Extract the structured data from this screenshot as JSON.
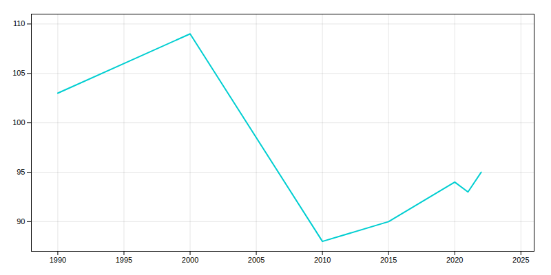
{
  "chart_data": {
    "type": "line",
    "x": [
      1990,
      1995,
      2000,
      2010,
      2015,
      2020,
      2021,
      2022
    ],
    "values": [
      103,
      106,
      109,
      88,
      90,
      94,
      93,
      95
    ],
    "color": "#00CED1",
    "xlim": [
      1988,
      2026
    ],
    "ylim": [
      87,
      111
    ],
    "xticks": [
      1990,
      1995,
      2000,
      2005,
      2010,
      2015,
      2020,
      2025
    ],
    "yticks": [
      90,
      95,
      100,
      105,
      110
    ],
    "grid": true
  }
}
